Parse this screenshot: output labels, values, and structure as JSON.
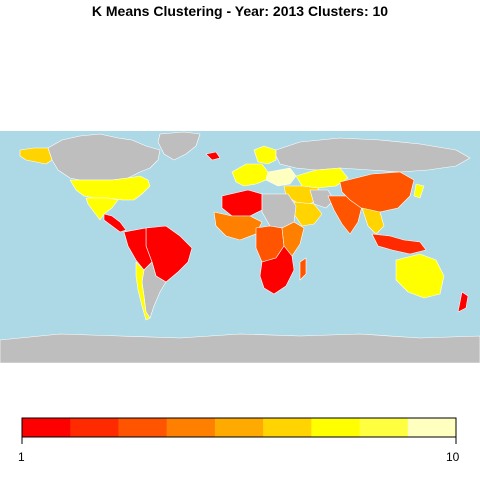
{
  "title": "K Means Clustering - Year: 2013 Clusters: 10",
  "colors": {
    "ocean": "#add8e6",
    "land_nodata": "#bebebe",
    "border": "#ffffff"
  },
  "legend": {
    "min_label": "1",
    "max_label": "10",
    "palette": [
      "#ff0000",
      "#ff2a00",
      "#ff5500",
      "#ff8000",
      "#ffaa00",
      "#ffd400",
      "#ffff00",
      "#ffff40",
      "#ffffbf"
    ]
  },
  "regions": [
    {
      "name": "Canada",
      "cluster": "nodata"
    },
    {
      "name": "Alaska",
      "cluster": "6"
    },
    {
      "name": "Greenland",
      "cluster": "nodata"
    },
    {
      "name": "United States",
      "cluster": "7"
    },
    {
      "name": "Mexico",
      "cluster": "7"
    },
    {
      "name": "Central America",
      "cluster": "1"
    },
    {
      "name": "Brazil",
      "cluster": "1"
    },
    {
      "name": "Andean South America",
      "cluster": "1"
    },
    {
      "name": "Southern Cone",
      "cluster": "nodata"
    },
    {
      "name": "Chile",
      "cluster": "7"
    },
    {
      "name": "Western Europe",
      "cluster": "7"
    },
    {
      "name": "Nordic",
      "cluster": "7"
    },
    {
      "name": "Eastern Europe",
      "cluster": "9"
    },
    {
      "name": "Iceland",
      "cluster": "1"
    },
    {
      "name": "Russia",
      "cluster": "nodata"
    },
    {
      "name": "Kazakhstan",
      "cluster": "7"
    },
    {
      "name": "Middle East",
      "cluster": "6"
    },
    {
      "name": "Iran",
      "cluster": "nodata"
    },
    {
      "name": "Arabia",
      "cluster": "6"
    },
    {
      "name": "Northwest Africa",
      "cluster": "1"
    },
    {
      "name": "Northeast Africa",
      "cluster": "nodata"
    },
    {
      "name": "West Africa",
      "cluster": "4"
    },
    {
      "name": "Central Africa",
      "cluster": "3"
    },
    {
      "name": "East Africa",
      "cluster": "4"
    },
    {
      "name": "Southern Africa",
      "cluster": "1"
    },
    {
      "name": "Madagascar",
      "cluster": "3"
    },
    {
      "name": "South Asia",
      "cluster": "3"
    },
    {
      "name": "China",
      "cluster": "3"
    },
    {
      "name": "Japan",
      "cluster": "7"
    },
    {
      "name": "Southeast Asia",
      "cluster": "6"
    },
    {
      "name": "Indonesia",
      "cluster": "2"
    },
    {
      "name": "Australia",
      "cluster": "7"
    },
    {
      "name": "New Zealand",
      "cluster": "1"
    },
    {
      "name": "Antarctica",
      "cluster": "nodata"
    }
  ]
}
